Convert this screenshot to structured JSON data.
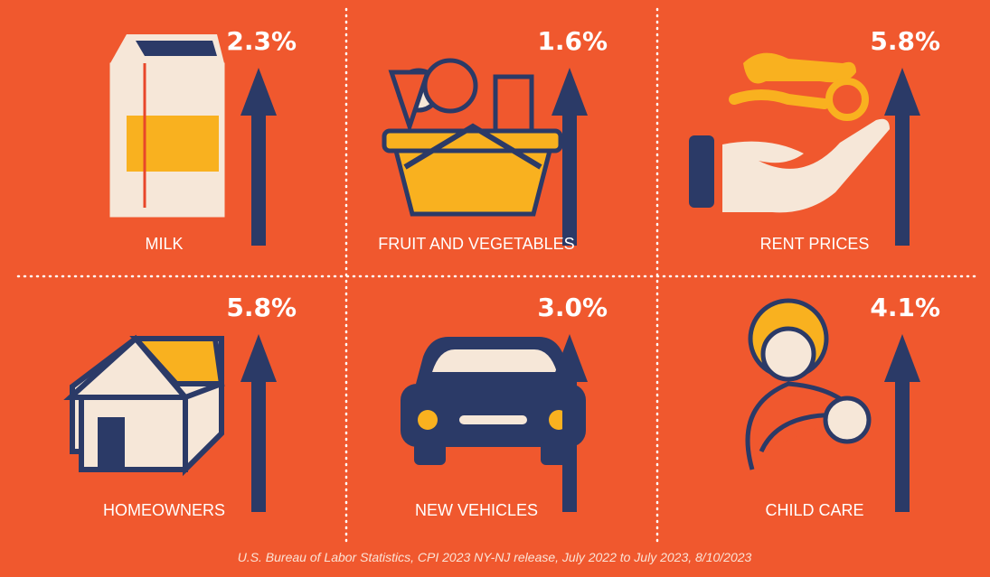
{
  "items": [
    {
      "label": "MILK",
      "value": "2.3%"
    },
    {
      "label": "FRUIT AND VEGETABLES",
      "value": "1.6%"
    },
    {
      "label": "RENT PRICES",
      "value": "5.8%"
    },
    {
      "label": "HOMEOWNERS",
      "value": "5.8%"
    },
    {
      "label": "NEW VEHICLES",
      "value": "3.0%"
    },
    {
      "label": "CHILD CARE",
      "value": "4.1%"
    }
  ],
  "source": "U.S. Bureau of Labor Statistics, CPI 2023 NY-NJ release, July 2022 to July 2023, 8/10/2023"
}
